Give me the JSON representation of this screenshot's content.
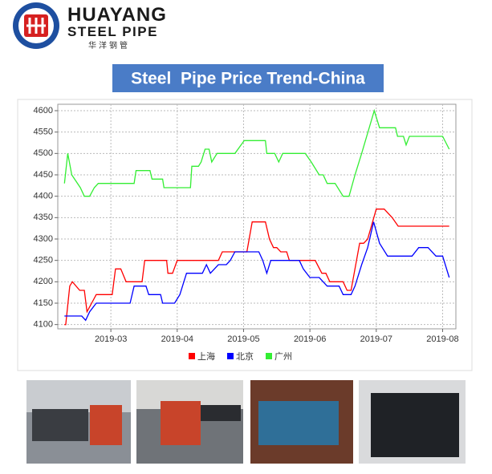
{
  "header": {
    "brand": "HUAYANG",
    "subtitle": "STEEL PIPE",
    "chinese": "华洋钢管"
  },
  "chart_data": {
    "type": "line",
    "title": "Steel  Pipe Price Trend-China",
    "xlim": [
      2.2,
      8.2
    ],
    "xticks": [
      {
        "value": 3,
        "label": "2019-03"
      },
      {
        "value": 4,
        "label": "2019-04"
      },
      {
        "value": 5,
        "label": "2019-05"
      },
      {
        "value": 6,
        "label": "2019-06"
      },
      {
        "value": 7,
        "label": "2019-07"
      },
      {
        "value": 8,
        "label": "2019-08"
      }
    ],
    "ylim": [
      4090,
      4615
    ],
    "yticks": [
      4100,
      4150,
      4200,
      4250,
      4300,
      4350,
      4400,
      4450,
      4500,
      4550,
      4600
    ],
    "grid": true,
    "legend": "bottom",
    "series": [
      {
        "name": "上海",
        "color": "#ff0000",
        "x": [
          2.3,
          2.32,
          2.38,
          2.42,
          2.53,
          2.6,
          2.64,
          2.71,
          2.78,
          3.02,
          3.07,
          3.15,
          3.23,
          3.47,
          3.51,
          3.84,
          3.86,
          3.93,
          4.0,
          4.62,
          4.68,
          5.05,
          5.13,
          5.33,
          5.39,
          5.45,
          5.5,
          5.56,
          5.65,
          5.69,
          6.08,
          6.18,
          6.24,
          6.3,
          6.5,
          6.56,
          6.62,
          6.75,
          6.81,
          6.87,
          7.0,
          7.12,
          7.24,
          7.33,
          8.1
        ],
        "values": [
          4100,
          4100,
          4190,
          4200,
          4180,
          4180,
          4130,
          4150,
          4170,
          4170,
          4230,
          4230,
          4200,
          4200,
          4250,
          4250,
          4220,
          4220,
          4250,
          4250,
          4270,
          4270,
          4340,
          4340,
          4300,
          4280,
          4280,
          4270,
          4270,
          4250,
          4250,
          4220,
          4220,
          4200,
          4200,
          4180,
          4180,
          4290,
          4290,
          4300,
          4370,
          4370,
          4350,
          4330,
          4330
        ]
      },
      {
        "name": "北京",
        "color": "#0000ff",
        "x": [
          2.3,
          2.56,
          2.62,
          2.68,
          2.78,
          3.29,
          3.35,
          3.53,
          3.57,
          3.75,
          3.78,
          3.96,
          4.04,
          4.14,
          4.38,
          4.44,
          4.5,
          4.62,
          4.74,
          4.8,
          4.87,
          5.23,
          5.29,
          5.35,
          5.41,
          5.84,
          5.9,
          6.0,
          6.14,
          6.26,
          6.44,
          6.5,
          6.62,
          6.68,
          6.78,
          6.87,
          6.96,
          7.05,
          7.17,
          7.54,
          7.64,
          7.78,
          7.9,
          8.0,
          8.1
        ],
        "values": [
          4120,
          4120,
          4110,
          4130,
          4150,
          4150,
          4190,
          4190,
          4170,
          4170,
          4150,
          4150,
          4170,
          4220,
          4220,
          4240,
          4220,
          4240,
          4240,
          4250,
          4270,
          4270,
          4250,
          4220,
          4250,
          4250,
          4230,
          4210,
          4210,
          4190,
          4190,
          4170,
          4170,
          4190,
          4240,
          4280,
          4340,
          4290,
          4260,
          4260,
          4280,
          4280,
          4260,
          4260,
          4210
        ]
      },
      {
        "name": "广州",
        "color": "#33ee33",
        "x": [
          2.3,
          2.35,
          2.41,
          2.54,
          2.6,
          2.68,
          2.75,
          2.81,
          3.35,
          3.38,
          3.59,
          3.62,
          3.78,
          3.8,
          4.2,
          4.22,
          4.32,
          4.36,
          4.42,
          4.48,
          4.52,
          4.6,
          4.87,
          5.01,
          5.33,
          5.35,
          5.47,
          5.53,
          5.59,
          5.93,
          6.02,
          6.14,
          6.2,
          6.26,
          6.38,
          6.5,
          6.59,
          6.68,
          6.78,
          6.97,
          7.05,
          7.29,
          7.32,
          7.41,
          7.45,
          7.5,
          8.0,
          8.1
        ],
        "values": [
          4430,
          4500,
          4450,
          4420,
          4400,
          4400,
          4420,
          4430,
          4430,
          4460,
          4460,
          4440,
          4440,
          4420,
          4420,
          4470,
          4470,
          4480,
          4510,
          4510,
          4480,
          4500,
          4500,
          4530,
          4530,
          4500,
          4500,
          4480,
          4500,
          4500,
          4480,
          4450,
          4450,
          4430,
          4430,
          4400,
          4400,
          4450,
          4500,
          4600,
          4560,
          4560,
          4540,
          4540,
          4520,
          4540,
          4540,
          4510
        ]
      }
    ]
  }
}
